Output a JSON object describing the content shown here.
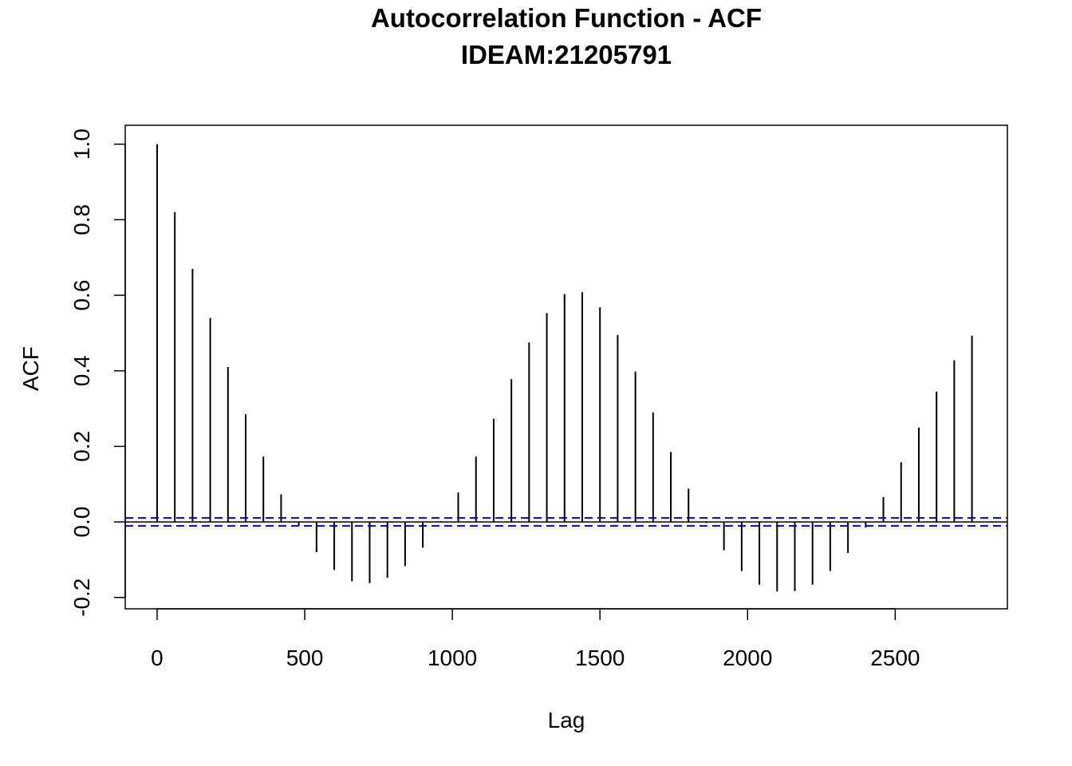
{
  "chart_data": {
    "type": "bar",
    "title": "Autocorrelation Function - ACF",
    "subtitle": "IDEAM:21205791",
    "xlabel": "Lag",
    "ylabel": "ACF",
    "xlim": [
      -108,
      2880
    ],
    "ylim": [
      -0.23,
      1.05
    ],
    "x_ticks": [
      0,
      500,
      1000,
      1500,
      2000,
      2500
    ],
    "x_tick_labels": [
      "0",
      "500",
      "1000",
      "1500",
      "2000",
      "2500"
    ],
    "y_ticks": [
      -0.2,
      0.0,
      0.2,
      0.4,
      0.6,
      0.8,
      1.0
    ],
    "y_tick_labels": [
      "-0.2",
      "0.0",
      "0.2",
      "0.4",
      "0.6",
      "0.8",
      "1.0"
    ],
    "confidence_bound": 0.0105,
    "colors": {
      "spike": "#000000",
      "confidence": "#0000cc",
      "frame": "#000000"
    },
    "x": [
      0,
      60,
      120,
      180,
      240,
      300,
      360,
      420,
      480,
      540,
      600,
      660,
      720,
      780,
      840,
      900,
      960,
      1020,
      1080,
      1140,
      1200,
      1260,
      1320,
      1380,
      1440,
      1500,
      1560,
      1620,
      1680,
      1740,
      1800,
      1860,
      1920,
      1980,
      2040,
      2100,
      2160,
      2220,
      2280,
      2340,
      2400,
      2460,
      2520,
      2580,
      2640,
      2700,
      2760
    ],
    "values": [
      1.0,
      0.82,
      0.67,
      0.54,
      0.41,
      0.285,
      0.173,
      0.073,
      -0.01,
      -0.08,
      -0.127,
      -0.157,
      -0.162,
      -0.148,
      -0.117,
      -0.068,
      0.002,
      0.078,
      0.173,
      0.273,
      0.378,
      0.475,
      0.553,
      0.603,
      0.608,
      0.568,
      0.495,
      0.398,
      0.29,
      0.185,
      0.088,
      -0.003,
      -0.075,
      -0.13,
      -0.166,
      -0.184,
      -0.183,
      -0.166,
      -0.13,
      -0.082,
      -0.015,
      0.066,
      0.158,
      0.25,
      0.345,
      0.428,
      0.493
    ]
  }
}
